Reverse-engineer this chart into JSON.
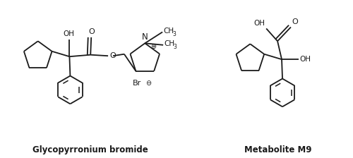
{
  "fig_width": 5.0,
  "fig_height": 2.24,
  "dpi": 100,
  "background": "#ffffff",
  "line_color": "#1a1a1a",
  "line_width": 1.3,
  "label_glyco": "Glycopyrronium bromide",
  "label_m9": "Metabolite M9",
  "label_fontsize": 8.5,
  "label_fontweight": "bold",
  "xlim": [
    0,
    10
  ],
  "ylim": [
    0,
    4.48
  ]
}
